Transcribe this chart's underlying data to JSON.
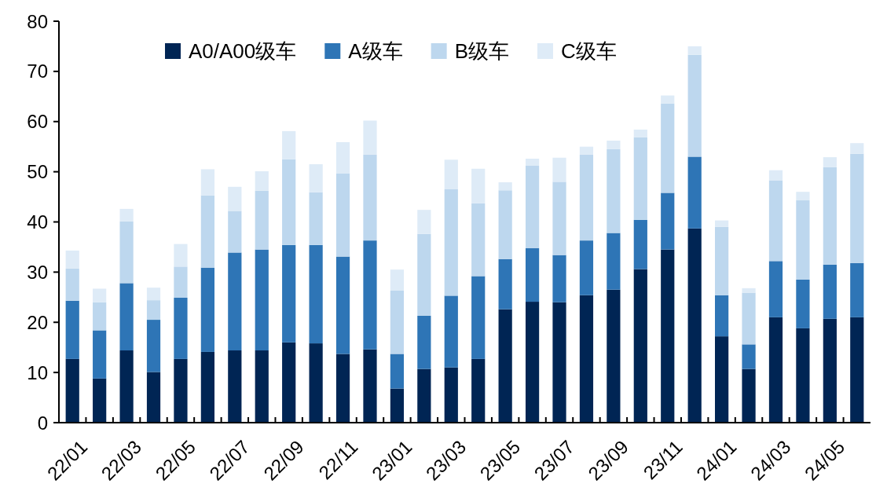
{
  "chart_data": {
    "type": "bar",
    "stacked": true,
    "legend": "top",
    "categories": [
      "22/01",
      null,
      "22/03",
      null,
      "22/05",
      null,
      "22/07",
      null,
      "22/09",
      null,
      "22/11",
      null,
      "23/01",
      null,
      "23/03",
      null,
      "23/05",
      null,
      "23/07",
      null,
      "23/09",
      null,
      "23/11",
      null,
      "24/01",
      null,
      "24/03",
      null,
      "24/05",
      null
    ],
    "series": [
      {
        "name": "A0/A00级车",
        "color": "#002554",
        "values": [
          12.7,
          8.8,
          14.4,
          10.1,
          12.7,
          14.1,
          14.4,
          14.4,
          16.0,
          15.8,
          13.7,
          14.6,
          6.8,
          10.7,
          11.0,
          12.7,
          22.6,
          24.1,
          24.0,
          25.4,
          26.5,
          30.6,
          34.5,
          38.7,
          17.2,
          10.7,
          21.0,
          18.8,
          20.7,
          21.0
        ]
      },
      {
        "name": "A级车",
        "color": "#2e75b6",
        "values": [
          11.6,
          9.6,
          13.4,
          10.4,
          12.2,
          16.8,
          19.5,
          20.1,
          19.4,
          19.6,
          19.4,
          21.7,
          6.9,
          10.6,
          14.3,
          16.5,
          10.0,
          10.7,
          9.4,
          10.9,
          11.3,
          9.8,
          11.3,
          14.3,
          8.2,
          4.9,
          11.2,
          9.7,
          10.8,
          10.8
        ]
      },
      {
        "name": "B级车",
        "color": "#bdd7ee",
        "values": [
          6.4,
          5.6,
          12.3,
          3.9,
          6.2,
          14.4,
          8.3,
          11.7,
          17.1,
          10.5,
          16.6,
          17.1,
          12.6,
          16.3,
          21.2,
          14.5,
          13.7,
          16.4,
          14.6,
          17.1,
          16.7,
          16.5,
          17.8,
          20.3,
          13.6,
          10.3,
          16.1,
          15.8,
          19.4,
          21.8
        ]
      },
      {
        "name": "C级车",
        "color": "#deebf7",
        "values": [
          3.6,
          2.7,
          2.5,
          2.5,
          4.5,
          5.2,
          4.8,
          3.9,
          5.6,
          5.6,
          6.2,
          6.8,
          4.2,
          4.8,
          5.9,
          6.9,
          1.6,
          1.4,
          4.8,
          1.6,
          1.7,
          1.5,
          1.6,
          1.7,
          1.3,
          0.9,
          2.0,
          1.7,
          2.0,
          2.1
        ]
      }
    ],
    "ylim": [
      0,
      80
    ],
    "yticks": [
      0,
      10,
      20,
      30,
      40,
      50,
      60,
      70,
      80
    ],
    "grid": false
  }
}
